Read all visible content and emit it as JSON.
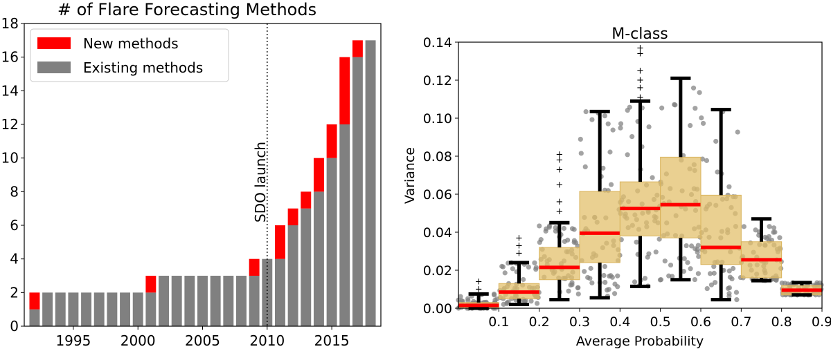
{
  "chart_data": [
    {
      "type": "bar",
      "title": "# of Flare Forecasting Methods",
      "xlabel": "",
      "ylabel": "",
      "xlim": [
        1991.2,
        2018.8
      ],
      "ylim": [
        0,
        18
      ],
      "xticks": [
        1995,
        2000,
        2005,
        2010,
        2015
      ],
      "yticks": [
        0,
        2,
        4,
        6,
        8,
        10,
        12,
        14,
        16,
        18
      ],
      "legend_position": "top-left",
      "colors": {
        "new": "#ff0000",
        "existing": "#808080"
      },
      "years": [
        1992,
        1993,
        1994,
        1995,
        1996,
        1997,
        1998,
        1999,
        2000,
        2001,
        2002,
        2003,
        2004,
        2005,
        2006,
        2007,
        2008,
        2009,
        2010,
        2011,
        2012,
        2013,
        2014,
        2015,
        2016,
        2017,
        2018
      ],
      "series": [
        {
          "name": "Existing methods",
          "values": [
            1,
            2,
            2,
            2,
            2,
            2,
            2,
            2,
            2,
            2,
            3,
            3,
            3,
            3,
            3,
            3,
            3,
            3,
            4,
            4,
            6,
            7,
            8,
            10,
            12,
            16,
            17
          ]
        },
        {
          "name": "New methods",
          "values": [
            1,
            0,
            0,
            0,
            0,
            0,
            0,
            0,
            0,
            1,
            0,
            0,
            0,
            0,
            0,
            0,
            0,
            1,
            0,
            2,
            1,
            1,
            2,
            2,
            4,
            1,
            0
          ]
        }
      ],
      "annotations": [
        {
          "text": "SDO launch",
          "x": 2010,
          "style": "dotted vertical line"
        }
      ]
    },
    {
      "type": "box",
      "title": "M-class",
      "xlabel": "Average Probability",
      "ylabel": "Variance",
      "xlim": [
        0.0,
        0.9
      ],
      "ylim": [
        0.0,
        0.14
      ],
      "xticks": [
        "0.1",
        "0.2",
        "0.3",
        "0.4",
        "0.5",
        "0.6",
        "0.7",
        "0.8",
        "0.9"
      ],
      "yticks": [
        "0.00",
        "0.02",
        "0.04",
        "0.06",
        "0.08",
        "0.10",
        "0.12",
        "0.14"
      ],
      "colors": {
        "box": "#e3c06c",
        "median": "#ff0000",
        "whisker": "#000000",
        "points": "#808080"
      },
      "boxes": [
        {
          "x": 0.05,
          "q1": 0.0,
          "median": 0.0015,
          "q3": 0.003,
          "whisker_low": 0.0,
          "whisker_high": 0.0075
        },
        {
          "x": 0.15,
          "q1": 0.005,
          "median": 0.0085,
          "q3": 0.013,
          "whisker_low": 0.002,
          "whisker_high": 0.024
        },
        {
          "x": 0.25,
          "q1": 0.015,
          "median": 0.0215,
          "q3": 0.032,
          "whisker_low": 0.0045,
          "whisker_high": 0.045
        },
        {
          "x": 0.35,
          "q1": 0.024,
          "median": 0.0395,
          "q3": 0.0615,
          "whisker_low": 0.0055,
          "whisker_high": 0.1035
        },
        {
          "x": 0.45,
          "q1": 0.038,
          "median": 0.0525,
          "q3": 0.0665,
          "whisker_low": 0.0115,
          "whisker_high": 0.109
        },
        {
          "x": 0.55,
          "q1": 0.037,
          "median": 0.0545,
          "q3": 0.0795,
          "whisker_low": 0.015,
          "whisker_high": 0.121
        },
        {
          "x": 0.65,
          "q1": 0.023,
          "median": 0.032,
          "q3": 0.0595,
          "whisker_low": 0.0045,
          "whisker_high": 0.1045
        },
        {
          "x": 0.75,
          "q1": 0.016,
          "median": 0.0255,
          "q3": 0.035,
          "whisker_low": 0.0145,
          "whisker_high": 0.047
        },
        {
          "x": 0.85,
          "q1": 0.007,
          "median": 0.0095,
          "q3": 0.012,
          "whisker_low": 0.007,
          "whisker_high": 0.0135
        }
      ],
      "outliers": [
        [
          0.15,
          0.029
        ],
        [
          0.15,
          0.033
        ],
        [
          0.15,
          0.037
        ],
        [
          0.25,
          0.051
        ],
        [
          0.25,
          0.056
        ],
        [
          0.25,
          0.065
        ],
        [
          0.25,
          0.073
        ],
        [
          0.25,
          0.078
        ],
        [
          0.25,
          0.081
        ],
        [
          0.45,
          0.111
        ],
        [
          0.45,
          0.116
        ],
        [
          0.45,
          0.12
        ],
        [
          0.45,
          0.125
        ],
        [
          0.45,
          0.134
        ],
        [
          0.45,
          0.137
        ],
        [
          0.05,
          0.01
        ],
        [
          0.05,
          0.014
        ]
      ]
    }
  ]
}
